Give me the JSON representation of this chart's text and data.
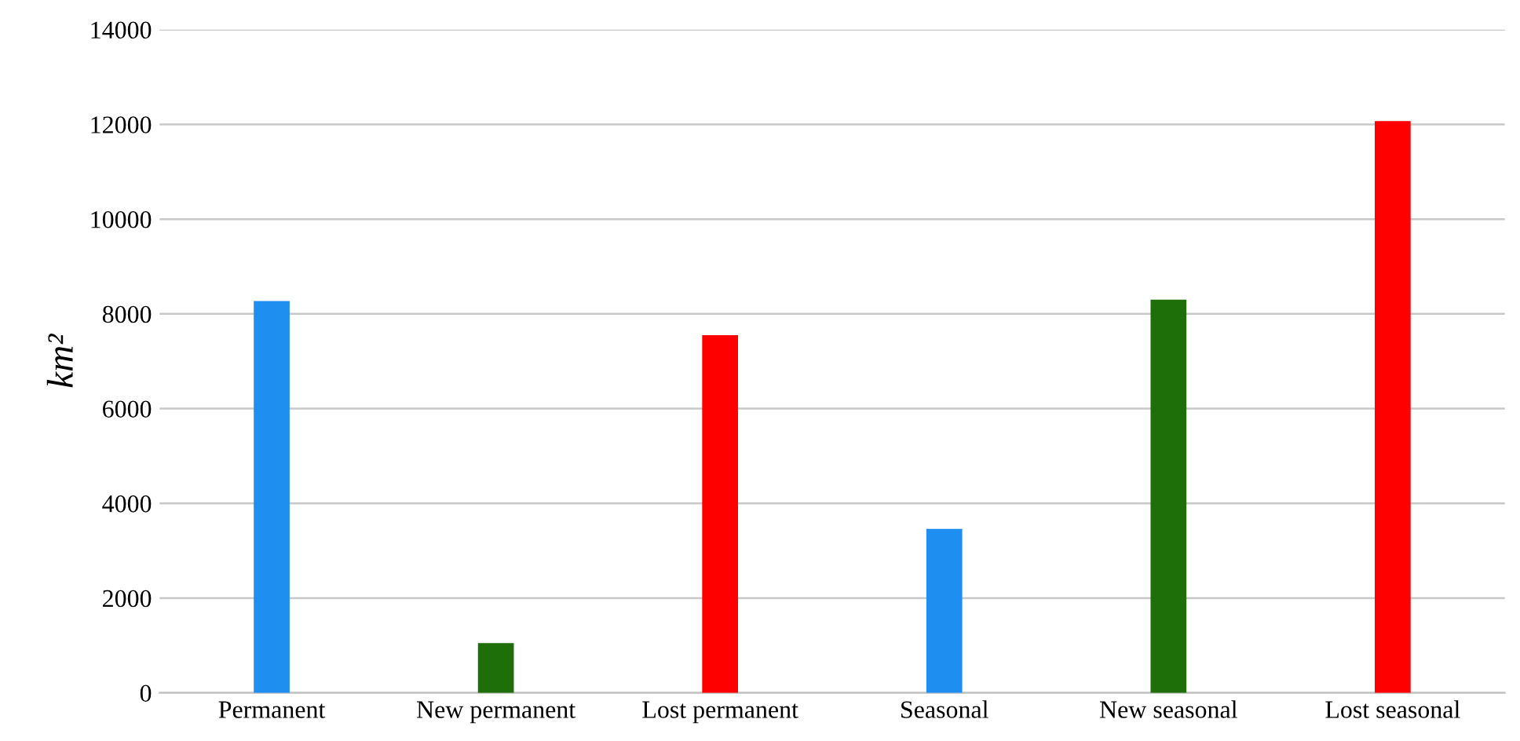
{
  "chart_data": {
    "type": "bar",
    "ylabel": "km²",
    "categories": [
      "Permanent",
      "New permanent",
      "Lost permanent",
      "Seasonal",
      "New seasonal",
      "Lost seasonal"
    ],
    "values": [
      8270,
      1050,
      7550,
      3460,
      8300,
      12070
    ],
    "colors": [
      "#1e8ef0",
      "#1e6e0a",
      "#ff0000",
      "#1e8ef0",
      "#1e6e0a",
      "#ff0000"
    ],
    "ylim": [
      0,
      14000
    ],
    "yticks": [
      0,
      2000,
      4000,
      6000,
      8000,
      10000,
      12000,
      14000
    ],
    "grid": "y"
  }
}
